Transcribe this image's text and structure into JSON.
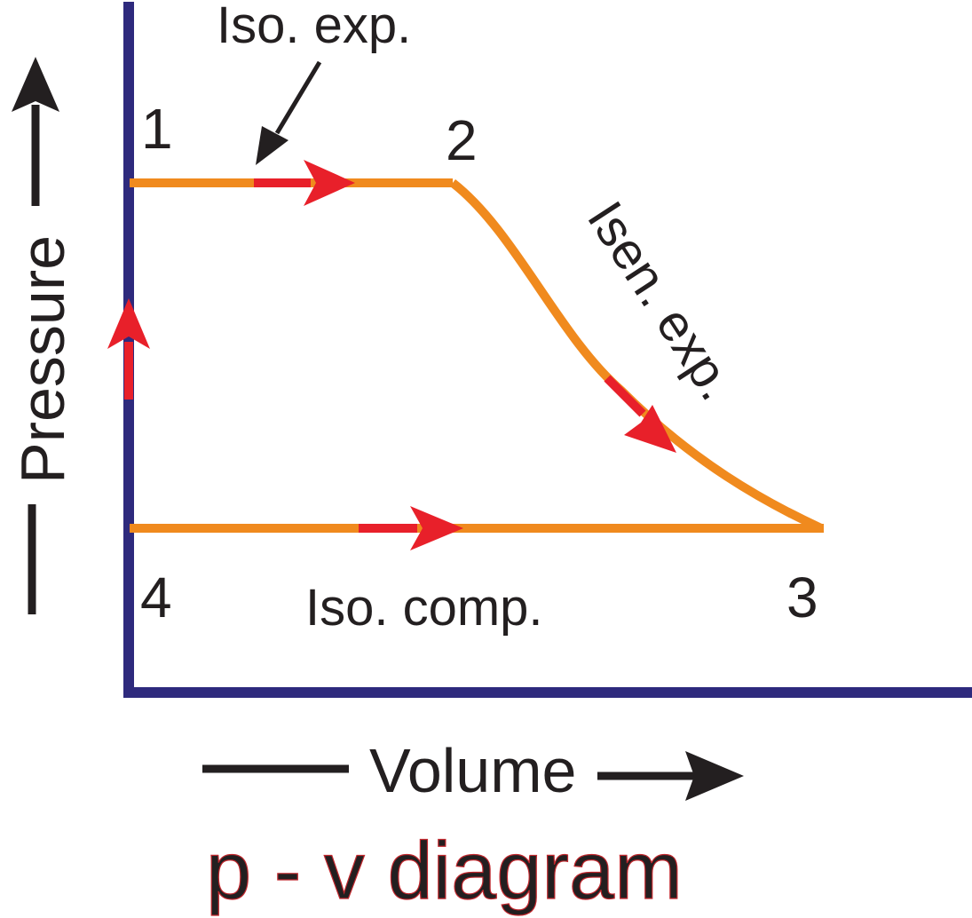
{
  "diagram": {
    "title": "p - v diagram",
    "axes": {
      "x_label": "Volume",
      "y_label": "Pressure"
    },
    "points": {
      "p1": "1",
      "p2": "2",
      "p3": "3",
      "p4": "4"
    },
    "processes": {
      "iso_exp": "Iso. exp.",
      "isen_exp": "Isen. exp.",
      "iso_comp": "Iso. comp."
    },
    "colors": {
      "axis": "#2e2a7d",
      "curve": "#f08a1e",
      "direction_arrow": "#e8202a",
      "text": "#231f20",
      "title_outline": "#c1272d"
    }
  }
}
